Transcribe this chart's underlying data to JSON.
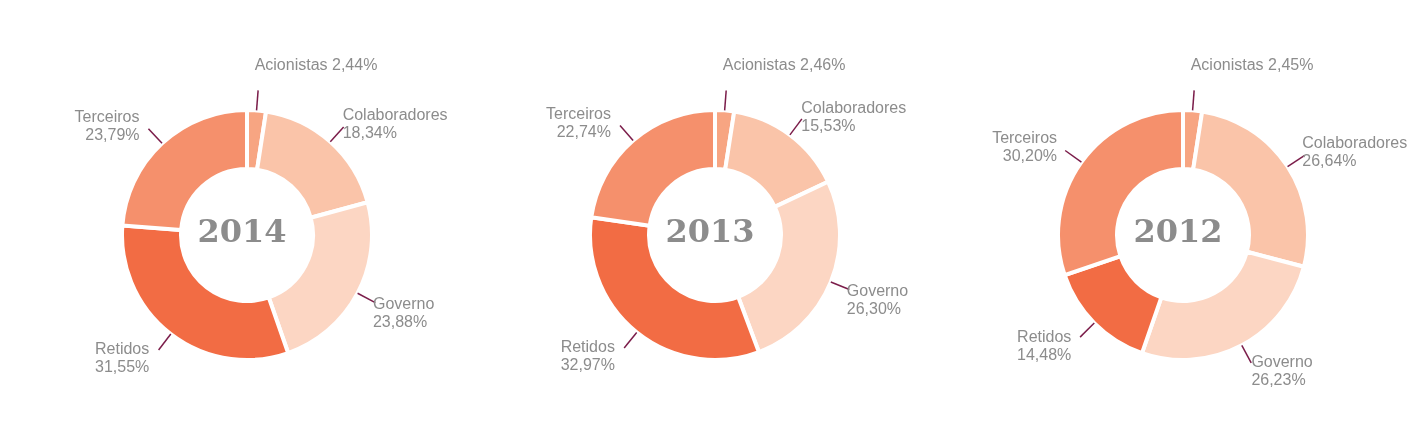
{
  "chart_data": [
    {
      "type": "donut",
      "title": "2014",
      "categories": [
        "Acionistas",
        "Colaboradores",
        "Governo",
        "Retidos",
        "Terceiros"
      ],
      "values": [
        2.44,
        18.34,
        23.88,
        31.55,
        23.79
      ],
      "value_labels": [
        "2,44%",
        "18,34%",
        "23,88%",
        "31,55%",
        "23,79%"
      ],
      "colors": [
        "#f7a582",
        "#fac4a9",
        "#fcd6c3",
        "#f26c44",
        "#f5906c"
      ]
    },
    {
      "type": "donut",
      "title": "2013",
      "categories": [
        "Acionistas",
        "Colaboradores",
        "Governo",
        "Retidos",
        "Terceiros"
      ],
      "values": [
        2.46,
        15.53,
        26.3,
        32.97,
        22.74
      ],
      "value_labels": [
        "2,46%",
        "15,53%",
        "26,30%",
        "32,97%",
        "22,74%"
      ],
      "colors": [
        "#f7a582",
        "#fac4a9",
        "#fcd6c3",
        "#f26c44",
        "#f5906c"
      ]
    },
    {
      "type": "donut",
      "title": "2012",
      "categories": [
        "Acionistas",
        "Colaboradores",
        "Governo",
        "Retidos",
        "Terceiros"
      ],
      "values": [
        2.45,
        26.64,
        26.23,
        14.48,
        30.2
      ],
      "value_labels": [
        "2,45%",
        "26,64%",
        "26,23%",
        "14,48%",
        "30,20%"
      ],
      "colors": [
        "#f7a582",
        "#fac4a9",
        "#fcd6c3",
        "#f26c44",
        "#f5906c"
      ]
    }
  ]
}
